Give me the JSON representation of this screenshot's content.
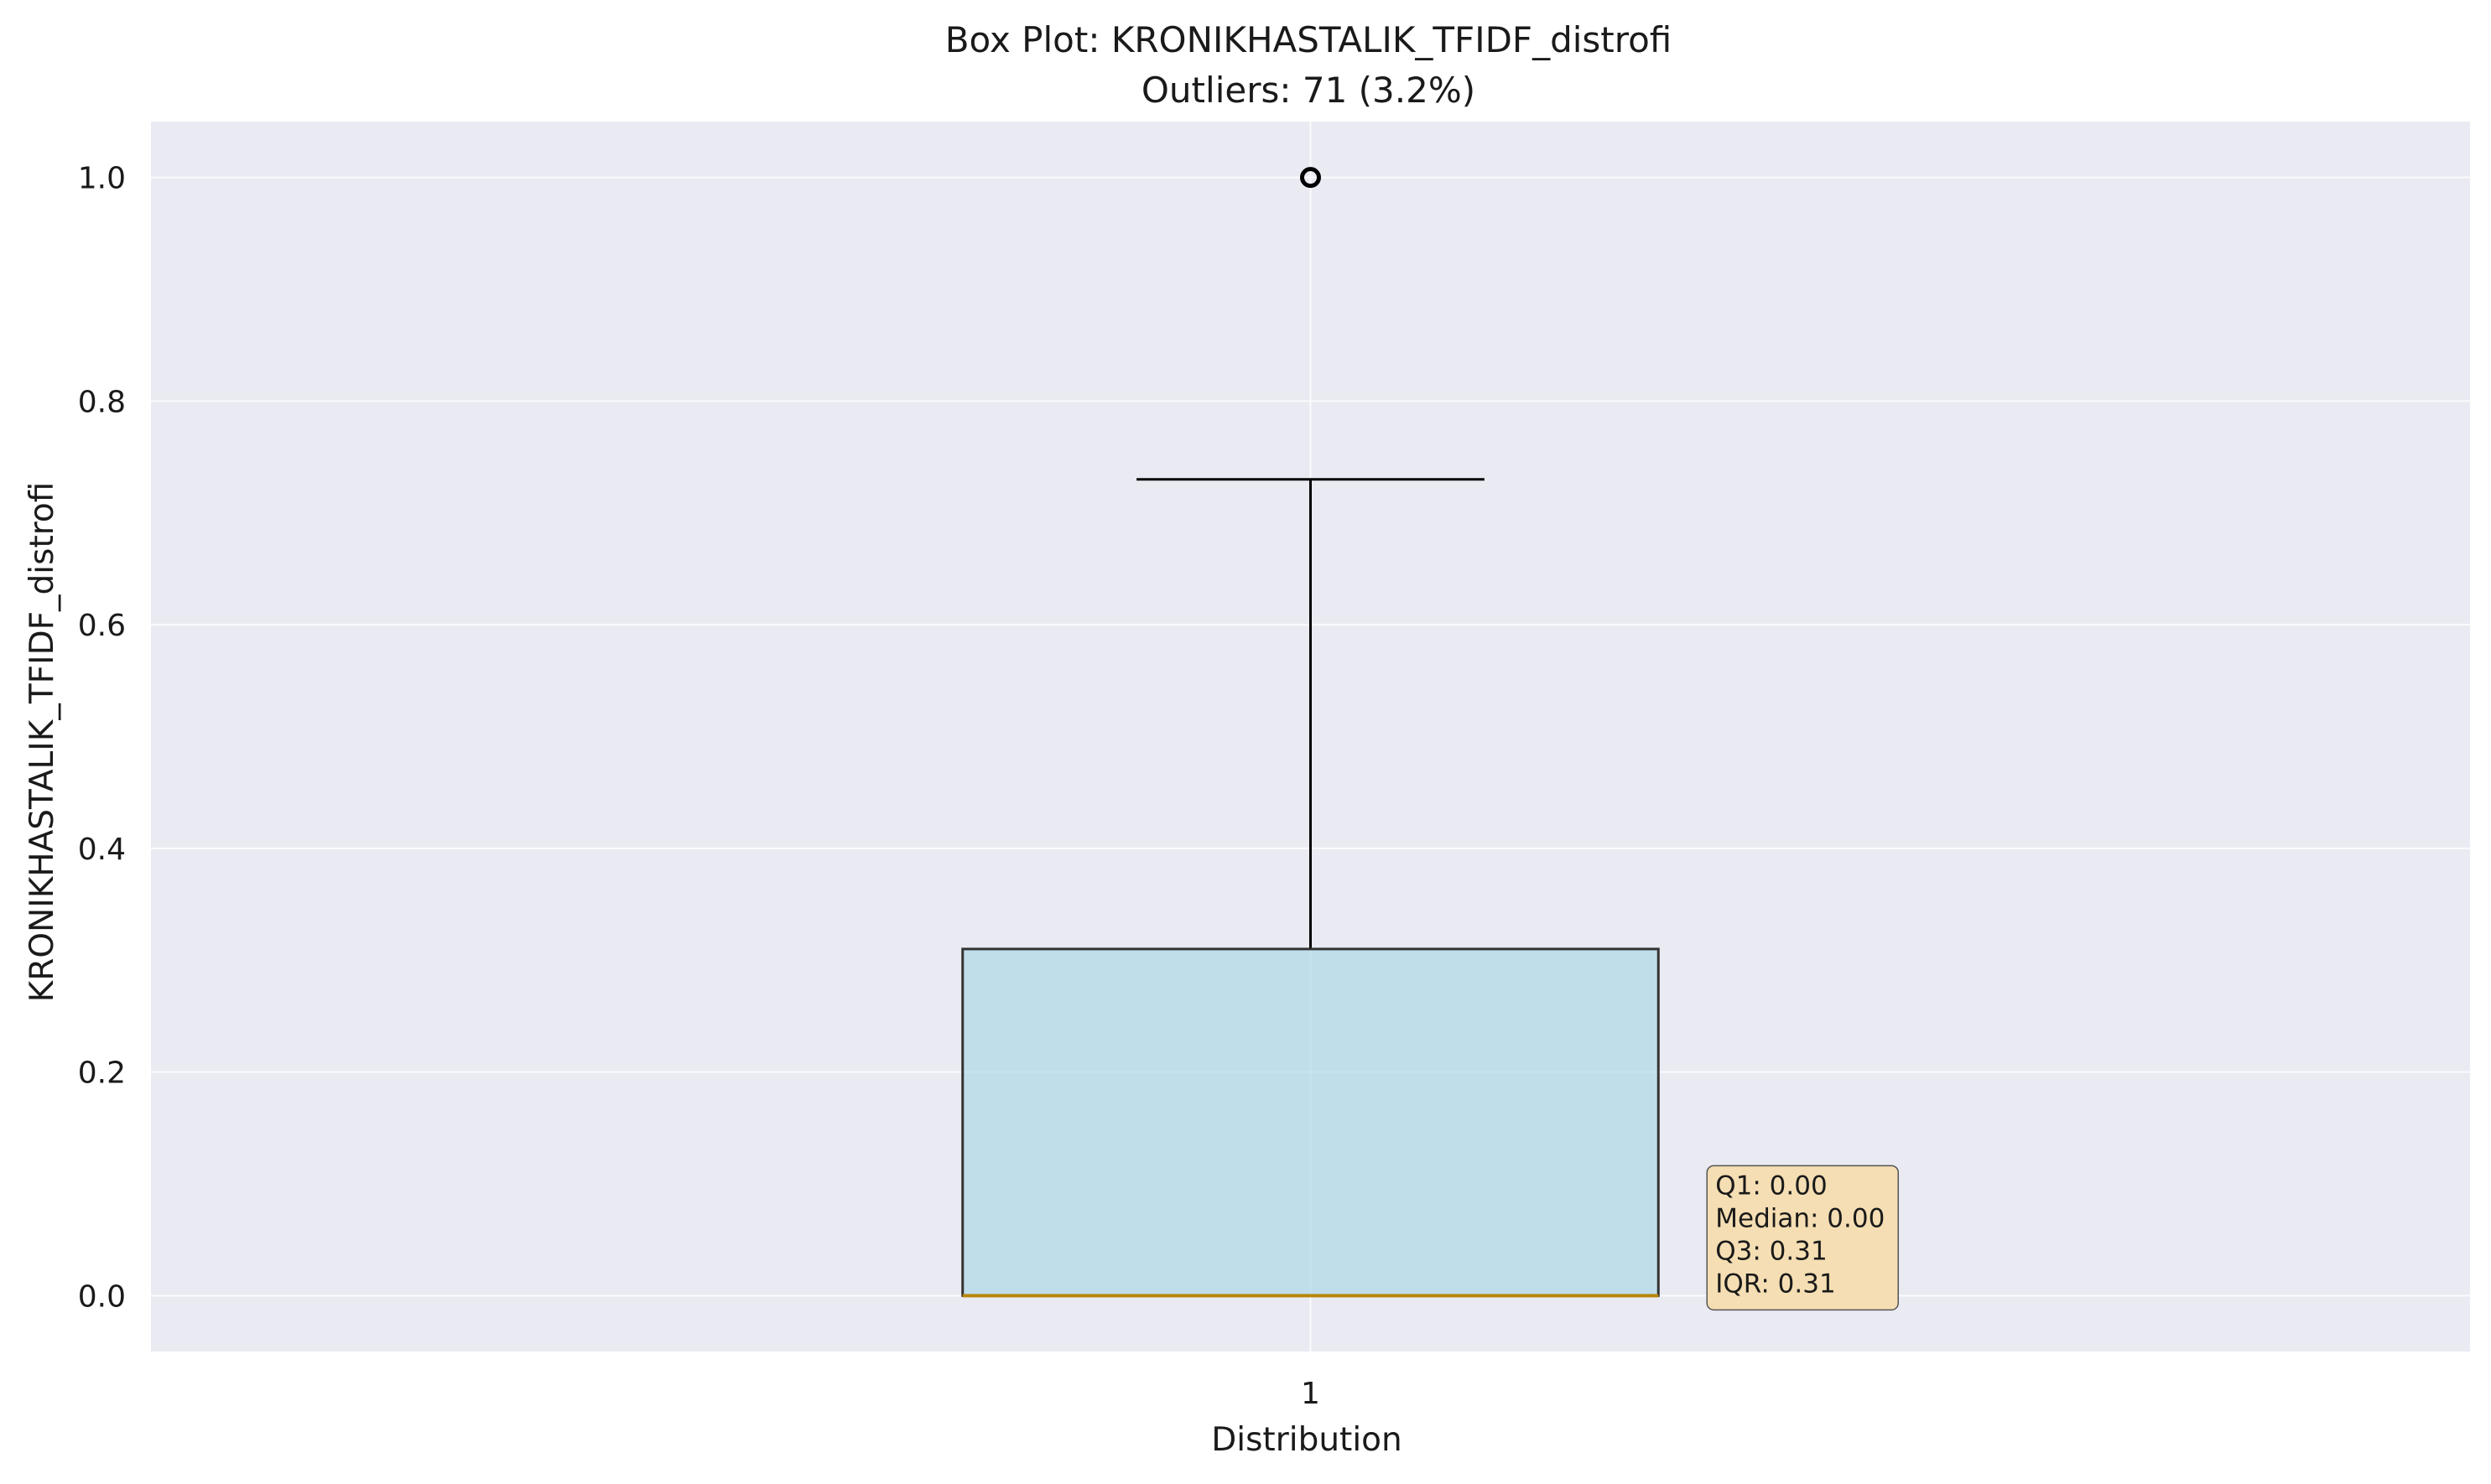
{
  "chart_data": {
    "type": "box",
    "title": "Box Plot: KRONIKHASTALIK_TFIDF_distrofi",
    "subtitle": "Outliers: 71 (3.2%)",
    "xlabel": "Distribution",
    "ylabel": "KRONIKHASTALIK_TFIDF_distrofi",
    "categories": [
      "1"
    ],
    "x_range": [
      0.5,
      1.5
    ],
    "ylim": [
      -0.05,
      1.05
    ],
    "yticks": [
      0.0,
      0.2,
      0.4,
      0.6,
      0.8,
      1.0
    ],
    "ytick_labels": [
      "0.0",
      "0.2",
      "0.4",
      "0.6",
      "0.8",
      "1.0"
    ],
    "grid": true,
    "box": {
      "q1": 0.0,
      "median": 0.0,
      "q3": 0.31,
      "whisker_low": 0.0,
      "whisker_high": 0.73,
      "outliers": [
        1.0
      ]
    },
    "stats_box": [
      "Q1: 0.00",
      "Median: 0.00",
      "Q3: 0.31",
      "IQR: 0.31"
    ],
    "colors": {
      "plot_background": "#eaeaf2",
      "grid": "#ffffff",
      "box_fill": "#add8e6",
      "box_edge": "#333333",
      "median": "#b8860b",
      "whisker": "#000000",
      "stats_fill": "#f5deb3"
    }
  }
}
